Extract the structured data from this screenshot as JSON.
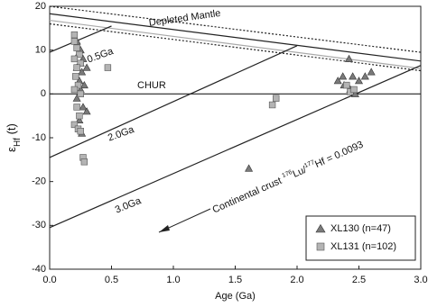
{
  "chart_data": {
    "type": "scatter",
    "x_label": "Age (Ga)",
    "y_label": [
      "ε",
      "Hf",
      " (t)"
    ],
    "xlim": [
      0,
      3.0
    ],
    "ylim": [
      -40,
      20
    ],
    "xticks": [
      {
        "value": 0,
        "label": "0.0"
      },
      {
        "value": 0.5,
        "label": "0.5"
      },
      {
        "value": 1.0,
        "label": "1.0"
      },
      {
        "value": 1.5,
        "label": "1.5"
      },
      {
        "value": 2.0,
        "label": "2.0"
      },
      {
        "value": 2.5,
        "label": "2.5"
      },
      {
        "value": 3.0,
        "label": "3.0"
      }
    ],
    "yticks": [
      -40,
      -30,
      -20,
      -10,
      0,
      10,
      20
    ],
    "legend": "lower right",
    "series": [
      {
        "name": "XL130 (n=47)",
        "marker": "triangle",
        "color": "#7a7a7a",
        "x": [
          0.22,
          0.25,
          0.23,
          0.27,
          0.25,
          0.3,
          0.22,
          0.26,
          0.24,
          0.28,
          0.25,
          0.22,
          0.27,
          0.3,
          0.24,
          0.26,
          1.61,
          2.33,
          2.38,
          2.42,
          2.45,
          2.5,
          2.55,
          2.6,
          2.43,
          2.47,
          2.37
        ],
        "values": [
          12,
          10,
          9,
          8,
          7,
          6,
          6,
          5,
          3,
          2,
          1,
          -1,
          -3,
          -4,
          -6,
          -9,
          -17,
          3,
          2,
          8,
          4,
          3,
          4,
          5,
          1,
          0,
          4
        ]
      },
      {
        "name": "XL131 (n=102)",
        "marker": "square",
        "color": "#b4b4b4",
        "x": [
          0.2,
          0.2,
          0.22,
          0.24,
          0.2,
          0.25,
          0.22,
          0.21,
          0.23,
          0.2,
          0.25,
          0.22,
          0.24,
          0.2,
          0.23,
          0.25,
          0.27,
          0.28,
          0.47,
          1.8,
          1.83,
          2.43,
          2.46,
          2.4
        ],
        "values": [
          13.5,
          12,
          10.5,
          9,
          8,
          7,
          6,
          4,
          2,
          1,
          0,
          -3,
          -5,
          -7,
          -8,
          -8.5,
          -14.5,
          -15.5,
          6,
          -2.5,
          -1,
          0.5,
          1,
          2
        ]
      }
    ],
    "reference_lines": [
      {
        "x": [
          0,
          3.0
        ],
        "values": [
          20,
          9.5
        ],
        "style": "dotted",
        "color": "#222"
      },
      {
        "x": [
          0,
          3.0
        ],
        "values": [
          16,
          5.3
        ],
        "style": "dotted",
        "color": "#222"
      },
      {
        "x": [
          0,
          3.0
        ],
        "values": [
          18.3,
          7.5
        ],
        "style": "solid",
        "color": "#222"
      },
      {
        "x": [
          0,
          3.0
        ],
        "values": [
          16.8,
          5.8
        ],
        "style": "solid",
        "color": "#aaa"
      },
      {
        "x": [
          0,
          3.0
        ],
        "values": [
          0,
          0
        ],
        "style": "solid",
        "color": "#222"
      },
      {
        "x": [
          0,
          0.5
        ],
        "values": [
          9.5,
          15.5
        ],
        "style": "solid",
        "color": "#222"
      },
      {
        "x": [
          0,
          2.0
        ],
        "values": [
          -14.5,
          11
        ],
        "style": "solid",
        "color": "#222"
      },
      {
        "x": [
          0,
          3.0
        ],
        "values": [
          -30.5,
          6.5
        ],
        "style": "solid",
        "color": "#222"
      }
    ],
    "annotations": [
      "Depleted Mantle",
      "CHUR",
      "0.5Ga",
      "2.0Ga",
      "3.0Ga"
    ],
    "crust_label": [
      "Continental crust ",
      "176",
      "Lu/",
      "177",
      "Hf = 0.0093"
    ]
  }
}
